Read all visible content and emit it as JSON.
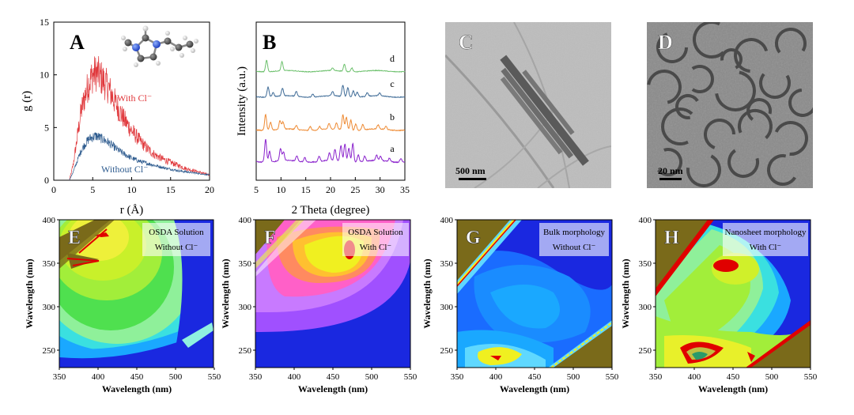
{
  "panels": {
    "A": {
      "label": "A",
      "series_labels": [
        "With Cl⁻",
        "Without Cl⁻"
      ]
    },
    "B": {
      "label": "B"
    },
    "C": {
      "label": "C",
      "scalebar": "500 nm"
    },
    "D": {
      "label": "D",
      "scalebar": "20 nm"
    },
    "E": {
      "label": "E",
      "caption_line1": "OSDA Solution",
      "caption_line2": "Without Cl⁻"
    },
    "F": {
      "label": "F",
      "caption_line1": "OSDA Solution",
      "caption_line2": "With Cl⁻"
    },
    "G": {
      "label": "G",
      "caption_line1": "Bulk morphology",
      "caption_line2": "Without Cl⁻"
    },
    "H": {
      "label": "H",
      "caption_line1": "Nanosheet morphology",
      "caption_line2": "With Cl⁻"
    }
  },
  "chart_data": [
    {
      "id": "A",
      "type": "line",
      "xlabel": "r (Å)",
      "ylabel": "g (r)",
      "xlim": [
        0,
        20
      ],
      "ylim": [
        0,
        15
      ],
      "xticks": [
        "0",
        "5",
        "10",
        "15",
        "20"
      ],
      "yticks": [
        "0",
        "5",
        "10",
        "15"
      ],
      "series": [
        {
          "name": "With Cl⁻",
          "color": "#e0383c",
          "x": [
            2,
            2.5,
            3,
            3.5,
            4,
            4.5,
            5,
            5.5,
            6,
            7,
            8,
            9,
            10,
            11,
            12,
            13,
            14,
            15,
            16,
            17,
            18,
            19,
            20
          ],
          "values": [
            0,
            1.5,
            4,
            6.5,
            8,
            9.2,
            10,
            10.2,
            9.8,
            8.8,
            7.2,
            5.8,
            4.7,
            3.8,
            3,
            2.4,
            2,
            1.7,
            1.4,
            1.1,
            0.9,
            0.7,
            0.5
          ]
        },
        {
          "name": "Without Cl⁻",
          "color": "#2f5c8f",
          "x": [
            2,
            2.5,
            3,
            3.5,
            4,
            4.5,
            5,
            5.5,
            6,
            7,
            8,
            9,
            10,
            11,
            12,
            13,
            14,
            15,
            16,
            17,
            18,
            19,
            20
          ],
          "values": [
            0,
            0.8,
            1.8,
            2.8,
            3.4,
            3.9,
            4.1,
            4.2,
            4,
            3.6,
            3,
            2.5,
            2.1,
            1.8,
            1.6,
            1.4,
            1.2,
            1.05,
            0.9,
            0.8,
            0.7,
            0.6,
            0.5
          ]
        }
      ]
    },
    {
      "id": "B",
      "type": "line",
      "xlabel": "2 Theta (degree)",
      "ylabel": "Intensity (a.u.)",
      "xlim": [
        5,
        35
      ],
      "xticks": [
        "5",
        "10",
        "15",
        "20",
        "25",
        "30",
        "35"
      ],
      "series": [
        {
          "name": "a",
          "color": "#8a22cc",
          "peaks": [
            [
              6.9,
              1.3
            ],
            [
              7.7,
              0.6
            ],
            [
              9.9,
              0.7
            ],
            [
              10.5,
              0.5
            ],
            [
              13.2,
              0.3
            ],
            [
              14.8,
              0.25
            ],
            [
              17.7,
              0.3
            ],
            [
              19.8,
              0.45
            ],
            [
              20.9,
              0.65
            ],
            [
              22.1,
              0.9
            ],
            [
              22.9,
              1.0
            ],
            [
              23.7,
              0.8
            ],
            [
              24.5,
              1.05
            ],
            [
              25.6,
              0.4
            ],
            [
              26.9,
              0.3
            ],
            [
              29.3,
              0.3
            ],
            [
              30.1,
              0.25
            ],
            [
              31.9,
              0.2
            ],
            [
              34.2,
              0.2
            ]
          ]
        },
        {
          "name": "b",
          "color": "#ee8a33",
          "peaks": [
            [
              6.9,
              1.0
            ],
            [
              7.9,
              0.5
            ],
            [
              9.8,
              0.55
            ],
            [
              10.4,
              0.45
            ],
            [
              13.1,
              0.25
            ],
            [
              15.9,
              0.25
            ],
            [
              17.8,
              0.2
            ],
            [
              19.7,
              0.35
            ],
            [
              21.2,
              0.4
            ],
            [
              22.5,
              0.95
            ],
            [
              23.2,
              0.8
            ],
            [
              24.1,
              0.65
            ],
            [
              25.1,
              0.4
            ],
            [
              26.5,
              0.35
            ],
            [
              29.6,
              0.25
            ],
            [
              31.2,
              0.2
            ]
          ]
        },
        {
          "name": "c",
          "color": "#3d6a96",
          "peaks": [
            [
              7.4,
              0.7
            ],
            [
              8.4,
              0.3
            ],
            [
              10.3,
              0.55
            ],
            [
              13.1,
              0.35
            ],
            [
              16.4,
              0.2
            ],
            [
              20.4,
              0.3
            ],
            [
              22.5,
              0.8
            ],
            [
              23.5,
              0.65
            ],
            [
              24.6,
              0.45
            ],
            [
              25.4,
              0.35
            ],
            [
              27.4,
              0.25
            ],
            [
              29.9,
              0.2
            ]
          ]
        },
        {
          "name": "d",
          "color": "#6cc06c",
          "peaks": [
            [
              7.1,
              0.9
            ],
            [
              10.2,
              0.7
            ],
            [
              20.4,
              0.2
            ],
            [
              22.8,
              0.55
            ],
            [
              24.3,
              0.3
            ]
          ]
        }
      ]
    },
    {
      "id": "E",
      "type": "heatmap",
      "xlabel": "Wavelength (nm)",
      "ylabel": "Wavelength (nm)",
      "xlim": [
        350,
        550
      ],
      "ylim": [
        230,
        400
      ],
      "xticks": [
        "350",
        "400",
        "450",
        "500",
        "550"
      ],
      "yticks": [
        "250",
        "300",
        "350",
        "400"
      ]
    },
    {
      "id": "F",
      "type": "heatmap",
      "xlabel": "Wavelength (nm)",
      "ylabel": "Wavelength (nm)",
      "xlim": [
        350,
        550
      ],
      "ylim": [
        230,
        400
      ],
      "xticks": [
        "350",
        "400",
        "450",
        "500",
        "550"
      ],
      "yticks": [
        "250",
        "300",
        "350",
        "400"
      ]
    },
    {
      "id": "G",
      "type": "heatmap",
      "xlabel": "Wavelength (nm)",
      "ylabel": "Wavelength (nm)",
      "xlim": [
        350,
        550
      ],
      "ylim": [
        230,
        400
      ],
      "xticks": [
        "350",
        "400",
        "450",
        "500",
        "550"
      ],
      "yticks": [
        "250",
        "300",
        "350",
        "400"
      ]
    },
    {
      "id": "H",
      "type": "heatmap",
      "xlabel": "Wavelength (nm)",
      "ylabel": "Wavelength (nm)",
      "xlim": [
        350,
        550
      ],
      "ylim": [
        230,
        400
      ],
      "xticks": [
        "350",
        "400",
        "450",
        "500",
        "550"
      ],
      "yticks": [
        "250",
        "300",
        "350",
        "400"
      ]
    }
  ]
}
